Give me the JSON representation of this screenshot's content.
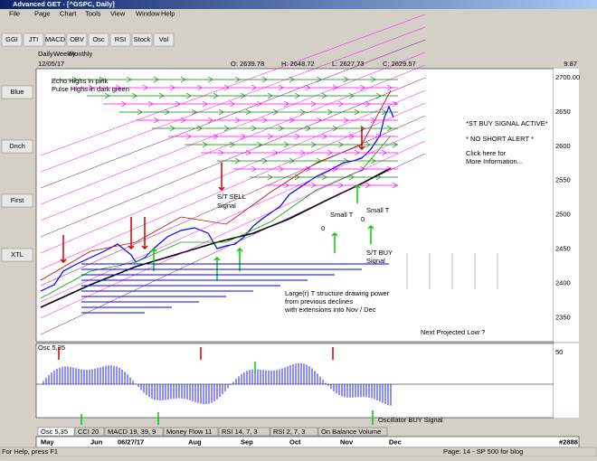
{
  "window": {
    "title": "Advanced GET - [^GSPC, Daily]"
  },
  "menu": [
    "File",
    "Page",
    "Chart",
    "Tools",
    "View",
    "Window",
    "Help"
  ],
  "toolbar": [
    "GGI",
    "JTI",
    "MACD",
    "OBV",
    "Osc",
    "RSI",
    "Stock",
    "Vol"
  ],
  "side_toolbar": [
    "Blue",
    "Dnch",
    "First",
    "XTL"
  ],
  "period_tabs": [
    "Daily",
    "Weekly",
    "Monthly"
  ],
  "quote": {
    "date": "12/05/17",
    "open": "O: 2639.78",
    "high": "H: 2648.72",
    "low": "L: 2627.73",
    "close": "C: 2629.57",
    "change": "9.87"
  },
  "price_axis": [
    "2700.00",
    "2650",
    "2600",
    "2550",
    "2500",
    "2450",
    "2400",
    "2350"
  ],
  "annotations": {
    "echo": "Echo Highs in pink",
    "pulse": "Pulse Highs in dark green",
    "sell": [
      "S/T SELL",
      "Signal"
    ],
    "active": "*ST BUY SIGNAL ACTIVE*",
    "no_short": "* NO SHORT ALERT *",
    "click": [
      "Click here for",
      "More Information..."
    ],
    "small_t": [
      "Small  T",
      "Small T"
    ],
    "zeros": [
      "0",
      "0"
    ],
    "buy": [
      "S/T BUY",
      "Signal"
    ],
    "large": [
      "Large(r) T structure drawing power",
      "from previous declines",
      "with extensions into Nov / Dec"
    ],
    "next_low": "Next Projected Low ?",
    "osc_buy": "Oscillator BUY Signal"
  },
  "oscillator": {
    "label": "Osc 5,35",
    "axis": "50"
  },
  "indicator_tabs": [
    "Osc 5,35",
    "CCI 20",
    "MACD 19, 39, 9",
    "Money Flow 11",
    "RSI 14, 7, 3",
    "RSI 2, 7, 3",
    "On Balance Volume"
  ],
  "date_axis": [
    "May",
    "Jun",
    "06/27/17",
    "Aug",
    "Sep",
    "Oct",
    "Nov",
    "Dec"
  ],
  "status": {
    "help": "For Help, press F1",
    "page": "Page: 14 - SP 500 for blog",
    "count": "#2888"
  }
}
